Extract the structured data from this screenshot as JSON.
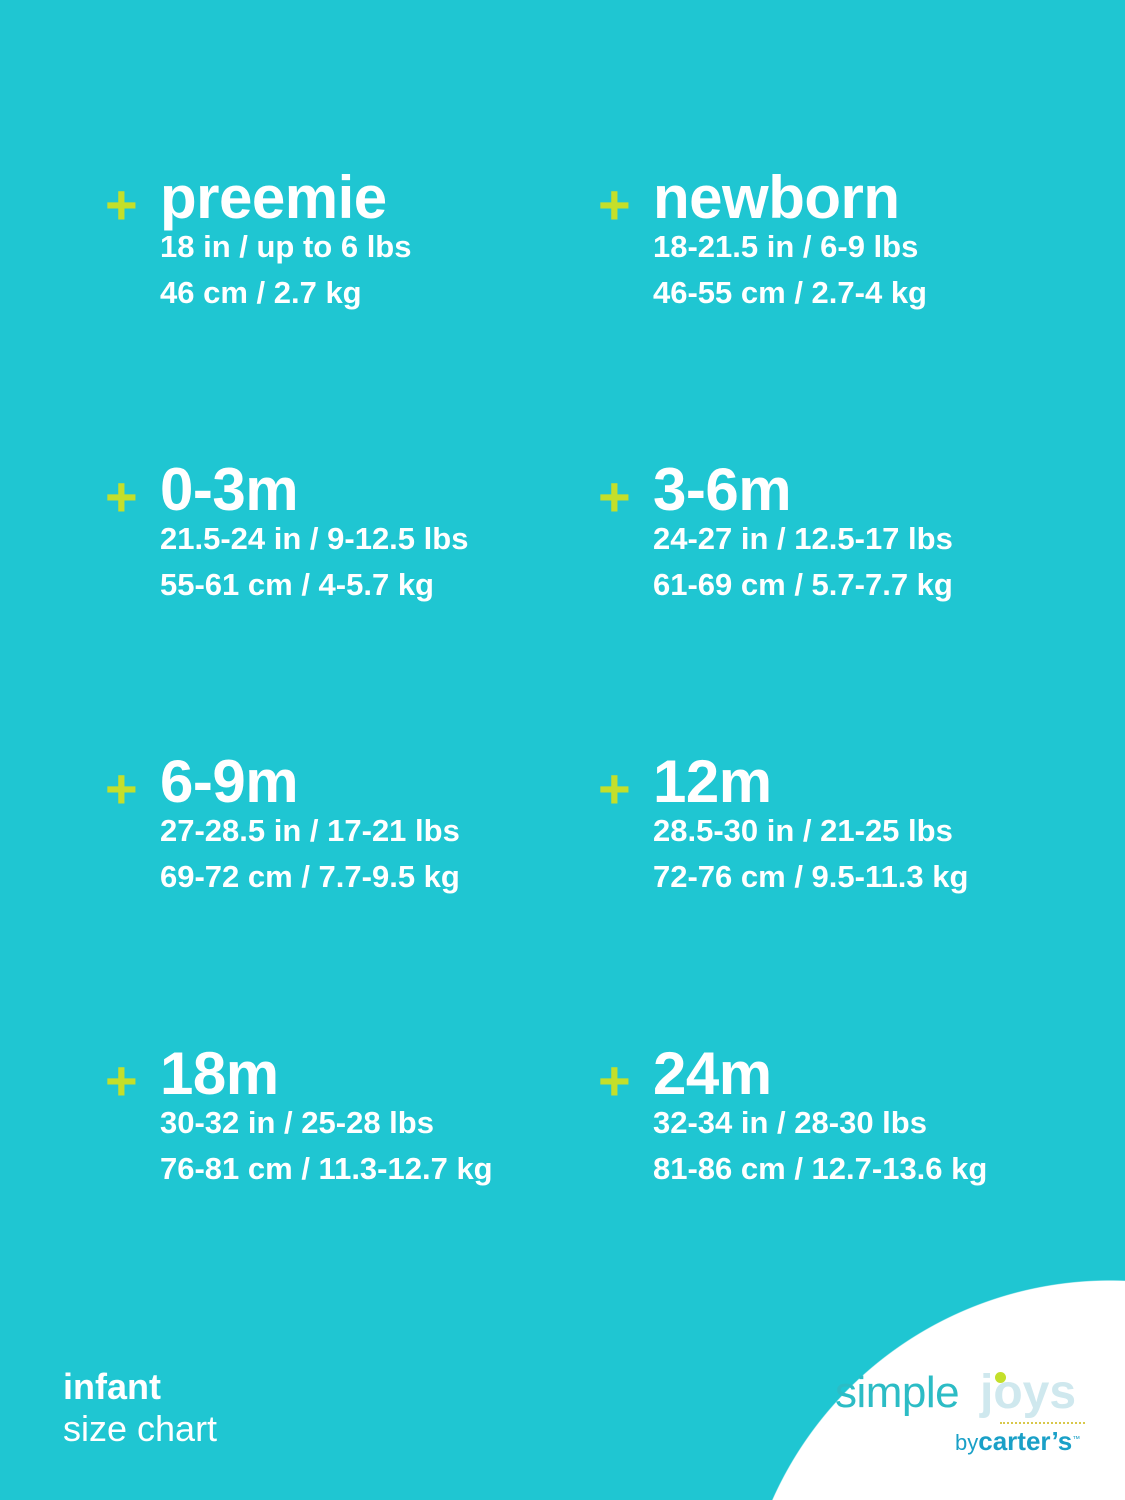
{
  "sizes": [
    {
      "name": "preemie",
      "imperial": "18 in / up to 6 lbs",
      "metric": "46 cm / 2.7 kg"
    },
    {
      "name": "newborn",
      "imperial": "18-21.5 in / 6-9 lbs",
      "metric": "46-55 cm / 2.7-4 kg"
    },
    {
      "name": "0-3m",
      "imperial": "21.5-24 in / 9-12.5 lbs",
      "metric": "55-61 cm / 4-5.7 kg"
    },
    {
      "name": "3-6m",
      "imperial": "24-27 in / 12.5-17 lbs",
      "metric": "61-69 cm / 5.7-7.7 kg"
    },
    {
      "name": "6-9m",
      "imperial": "27-28.5 in / 17-21 lbs",
      "metric": "69-72 cm / 7.7-9.5 kg"
    },
    {
      "name": "12m",
      "imperial": "28.5-30 in / 21-25 lbs",
      "metric": "72-76 cm / 9.5-11.3 kg"
    },
    {
      "name": "18m",
      "imperial": "30-32 in / 25-28 lbs",
      "metric": "76-81 cm / 11.3-12.7 kg"
    },
    {
      "name": "24m",
      "imperial": "32-34 in / 28-30 lbs",
      "metric": "81-86 cm / 12.7-13.6 kg"
    }
  ],
  "plus_symbol": "+",
  "caption": {
    "line1": "infant",
    "line2": "size chart"
  },
  "logo": {
    "simple": "simple",
    "joys": "joys",
    "by": "by",
    "brand": "carter’s",
    "tm": "™"
  },
  "colors": {
    "background": "#1fc6d2",
    "accent": "#c4df2a",
    "text": "#ffffff"
  }
}
